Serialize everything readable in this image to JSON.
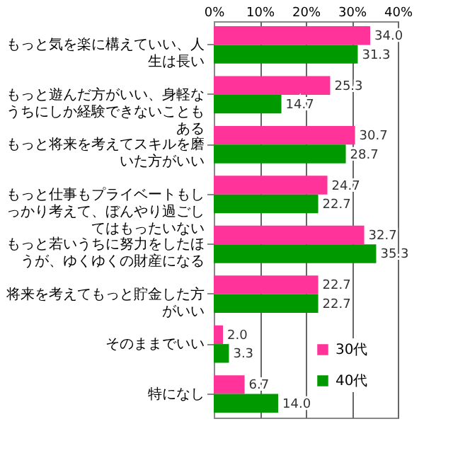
{
  "chart_data": {
    "type": "bar",
    "orientation": "horizontal",
    "categories": [
      "もっと気を楽に構えていい、人生は長い",
      "もっと遊んだ方がいい、身軽なうちにしか経験できないこともある",
      "もっと将来を考えてスキルを磨いた方がいい",
      "もっと仕事もプライベートもしっかり考えて、ぼんやり過ごしてはもったいない",
      "もっと若いうちに努力をしたほうが、ゆくゆくの財産になる",
      "将来を考えてもっと貯金した方がいい",
      "そのままでいい",
      "特になし"
    ],
    "series": [
      {
        "name": "30代",
        "color": "#ff3399",
        "values": [
          34.0,
          25.3,
          30.7,
          24.7,
          32.7,
          22.7,
          2.0,
          6.7
        ],
        "value_labels": [
          "34.0",
          "25.3",
          "30.7",
          "24.7",
          "32.7",
          "22.7",
          "2.0",
          "6.7"
        ]
      },
      {
        "name": "40代",
        "color": "#009900",
        "values": [
          31.3,
          14.7,
          28.7,
          22.7,
          35.3,
          22.7,
          3.3,
          14.0
        ],
        "value_labels": [
          "31.3",
          "14.7",
          "28.7",
          "22.7",
          "35.3",
          "22.7",
          "3.3",
          "14.0"
        ]
      }
    ],
    "xlim": [
      0,
      40
    ],
    "xticks": [
      {
        "value": 0,
        "label": "0%"
      },
      {
        "value": 10,
        "label": "10%"
      },
      {
        "value": 20,
        "label": "20%"
      },
      {
        "value": 30,
        "label": "30%"
      },
      {
        "value": 40,
        "label": "40%"
      }
    ],
    "grid": "x",
    "legend": "bottom right"
  }
}
